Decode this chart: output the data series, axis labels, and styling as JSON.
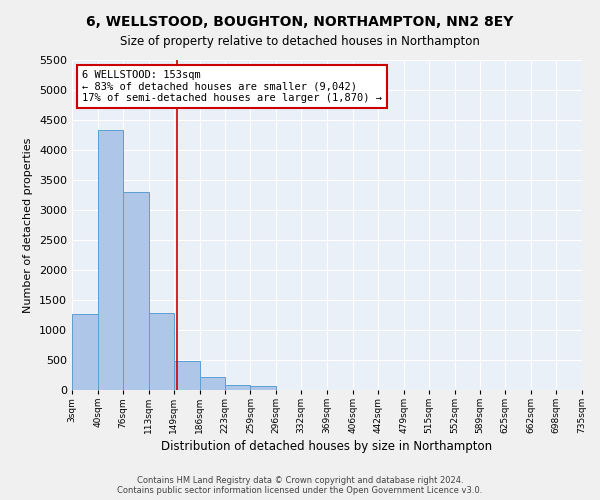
{
  "title": "6, WELLSTOOD, BOUGHTON, NORTHAMPTON, NN2 8EY",
  "subtitle": "Size of property relative to detached houses in Northampton",
  "xlabel": "Distribution of detached houses by size in Northampton",
  "ylabel": "Number of detached properties",
  "bin_edges": [
    3,
    40,
    76,
    113,
    149,
    186,
    223,
    259,
    296,
    332,
    369,
    406,
    442,
    479,
    515,
    552,
    589,
    625,
    662,
    698,
    735
  ],
  "bar_values": [
    1270,
    4330,
    3300,
    1290,
    480,
    210,
    90,
    60,
    0,
    0,
    0,
    0,
    0,
    0,
    0,
    0,
    0,
    0,
    0,
    0
  ],
  "bar_color": "#aec6e8",
  "bar_edge_color": "#5a9fd4",
  "vline_x": 153,
  "vline_color": "#cc0000",
  "annotation_text": "6 WELLSTOOD: 153sqm\n← 83% of detached houses are smaller (9,042)\n17% of semi-detached houses are larger (1,870) →",
  "annotation_box_color": "#ffffff",
  "annotation_border_color": "#cc0000",
  "ylim": [
    0,
    5500
  ],
  "yticks": [
    0,
    500,
    1000,
    1500,
    2000,
    2500,
    3000,
    3500,
    4000,
    4500,
    5000,
    5500
  ],
  "bg_color": "#eaf0f8",
  "grid_color": "#ffffff",
  "fig_bg_color": "#f0f0f0",
  "footer_line1": "Contains HM Land Registry data © Crown copyright and database right 2024.",
  "footer_line2": "Contains public sector information licensed under the Open Government Licence v3.0."
}
